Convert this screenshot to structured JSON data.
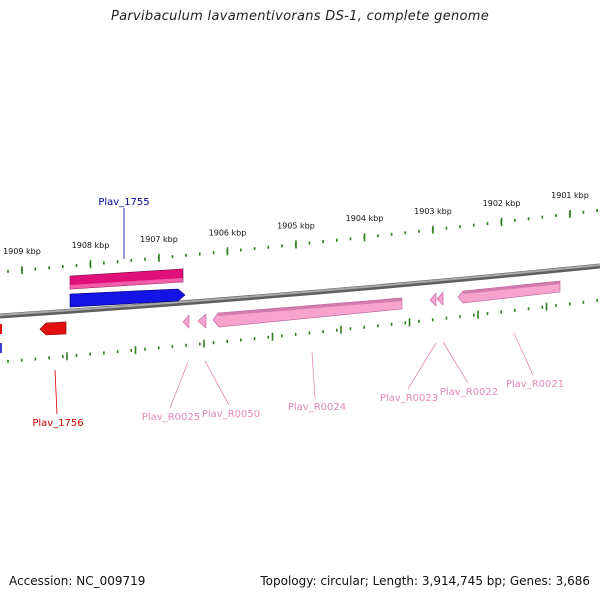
{
  "title": "Parvibaculum lavamentivorans DS-1, complete genome",
  "footer": {
    "accession": "Accession: NC_009719",
    "summary": "Topology: circular; Length: 3,914,745 bp; Genes: 3,686"
  },
  "colors": {
    "backbone": "#8a8a8a",
    "tick": "#2e7d1e",
    "gene_forward": "#e0107a",
    "gene_forward_2": "#1010e0",
    "gene_reverse": "#e01010",
    "rna": "#f59ac8",
    "rna_label": "#e488b8",
    "label_blue": "#000099",
    "label_red": "#cc0000"
  },
  "kbp_ticks": [
    {
      "label": "1909 kbp"
    },
    {
      "label": "1908 kbp"
    },
    {
      "label": "1907 kbp"
    },
    {
      "label": "1906 kbp"
    },
    {
      "label": "1905 kbp"
    },
    {
      "label": "1904 kbp"
    },
    {
      "label": "1903 kbp"
    },
    {
      "label": "1902 kbp"
    },
    {
      "label": "1901 kbp"
    }
  ],
  "features": [
    {
      "id": "Plav_1755",
      "label": "Plav_1755",
      "kind": "cds",
      "strand": "+"
    },
    {
      "id": "Plav_1756",
      "label": "Plav_1756",
      "kind": "cds",
      "strand": "-"
    },
    {
      "id": "Plav_R0025",
      "label": "Plav_R0025",
      "kind": "rna",
      "strand": "-"
    },
    {
      "id": "Plav_R0050",
      "label": "Plav_R0050",
      "kind": "rna",
      "strand": "-"
    },
    {
      "id": "Plav_R0024",
      "label": "Plav_R0024",
      "kind": "rna",
      "strand": "-"
    },
    {
      "id": "Plav_R0023",
      "label": "Plav_R0023",
      "kind": "rna",
      "strand": "-"
    },
    {
      "id": "Plav_R0022",
      "label": "Plav_R0022",
      "kind": "rna",
      "strand": "-"
    },
    {
      "id": "Plav_R0021",
      "label": "Plav_R0021",
      "kind": "rna",
      "strand": "-"
    }
  ]
}
